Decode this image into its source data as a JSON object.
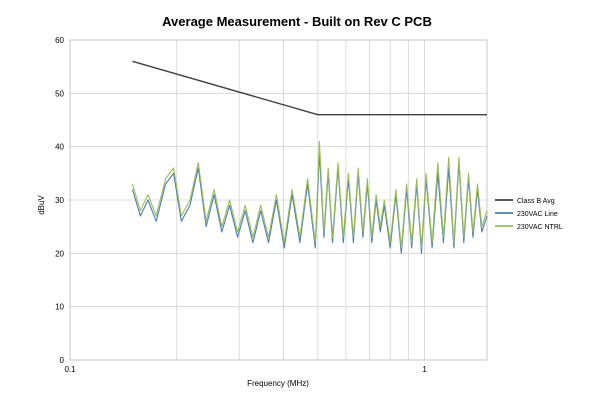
{
  "chart_data": {
    "type": "line",
    "title": "Average Measurement - Built on Rev C PCB",
    "xlabel": "Frequency (MHz)",
    "ylabel": "dBuV",
    "x_scale": "log",
    "xlim": [
      0.1,
      1.5
    ],
    "ylim": [
      0,
      60
    ],
    "x_tick_labels": [
      {
        "value": 0.1,
        "label": "0.1"
      },
      {
        "value": 1,
        "label": "1"
      }
    ],
    "y_ticks": [
      0,
      10,
      20,
      30,
      40,
      50,
      60
    ],
    "grid": true,
    "legend_position": "right",
    "series": [
      {
        "name": "Class B Avg",
        "color": "#404040",
        "x": [
          0.15,
          0.5,
          1.5
        ],
        "y": [
          56,
          46,
          46
        ]
      },
      {
        "name": "230VAC Line",
        "color": "#4a7fb0",
        "x": [
          0.15,
          0.158,
          0.166,
          0.175,
          0.186,
          0.196,
          0.206,
          0.218,
          0.23,
          0.242,
          0.255,
          0.268,
          0.282,
          0.297,
          0.312,
          0.328,
          0.345,
          0.363,
          0.382,
          0.402,
          0.423,
          0.445,
          0.468,
          0.492,
          0.505,
          0.52,
          0.535,
          0.55,
          0.57,
          0.59,
          0.61,
          0.63,
          0.65,
          0.67,
          0.69,
          0.71,
          0.73,
          0.75,
          0.77,
          0.8,
          0.83,
          0.86,
          0.89,
          0.92,
          0.95,
          0.98,
          1.01,
          1.05,
          1.09,
          1.13,
          1.17,
          1.21,
          1.25,
          1.29,
          1.33,
          1.37,
          1.41,
          1.45,
          1.5
        ],
        "y": [
          32,
          27,
          30,
          26,
          33,
          35,
          26,
          29,
          36,
          25,
          31,
          24,
          29,
          23,
          28,
          22,
          28,
          22,
          30,
          21,
          31,
          22,
          33,
          21,
          39,
          23,
          35,
          22,
          36,
          22,
          34,
          22,
          35,
          23,
          33,
          22,
          30,
          24,
          29,
          21,
          31,
          20,
          32,
          21,
          33,
          20,
          34,
          21,
          35,
          22,
          36,
          21,
          37,
          22,
          34,
          23,
          32,
          24,
          27
        ]
      },
      {
        "name": "230VAC NTRL",
        "color": "#9bbb59",
        "x": [
          0.15,
          0.158,
          0.166,
          0.175,
          0.186,
          0.196,
          0.206,
          0.218,
          0.23,
          0.242,
          0.255,
          0.268,
          0.282,
          0.297,
          0.312,
          0.328,
          0.345,
          0.363,
          0.382,
          0.402,
          0.423,
          0.445,
          0.468,
          0.492,
          0.505,
          0.52,
          0.535,
          0.55,
          0.57,
          0.59,
          0.61,
          0.63,
          0.65,
          0.67,
          0.69,
          0.71,
          0.73,
          0.75,
          0.77,
          0.8,
          0.83,
          0.86,
          0.89,
          0.92,
          0.95,
          0.98,
          1.01,
          1.05,
          1.09,
          1.13,
          1.17,
          1.21,
          1.25,
          1.29,
          1.33,
          1.37,
          1.41,
          1.45,
          1.5
        ],
        "y": [
          33,
          28,
          31,
          27,
          34,
          36,
          27,
          30,
          37,
          26,
          32,
          25,
          30,
          24,
          29,
          23,
          29,
          23,
          31,
          22,
          32,
          23,
          34,
          22,
          41,
          24,
          36,
          23,
          37,
          23,
          35,
          23,
          36,
          24,
          34,
          23,
          31,
          25,
          30,
          22,
          32,
          21,
          33,
          22,
          34,
          21,
          35,
          22,
          37,
          23,
          38,
          22,
          38,
          23,
          35,
          24,
          33,
          25,
          28
        ]
      }
    ]
  }
}
